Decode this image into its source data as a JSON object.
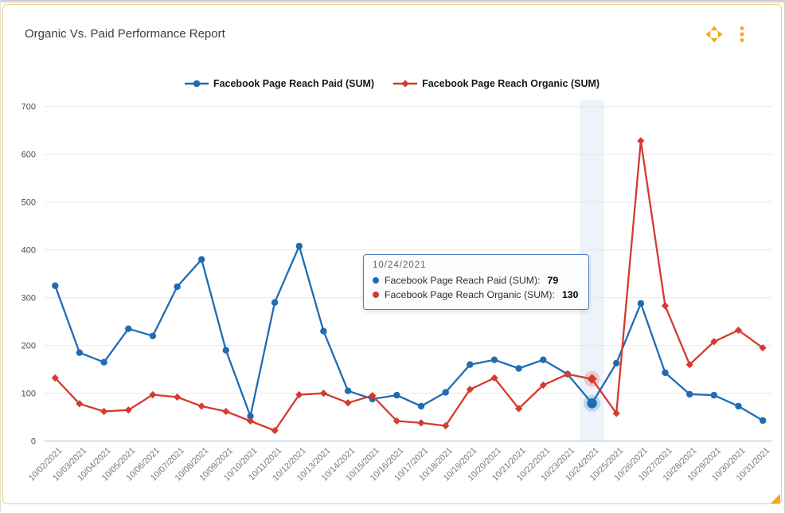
{
  "widget": {
    "title": "Organic Vs. Paid Performance Report",
    "icons": {
      "move": "move-arrows-icon",
      "menu": "kebab-vertical-dots-icon",
      "resize": "corner-resize-handle"
    }
  },
  "colors": {
    "paid": "#1F6CB4",
    "organic": "#D53A2E",
    "accent": "#F5A81F",
    "card_border": "#F3CF80",
    "grid": "#E8E8E8",
    "axis_line": "#BCD2EE",
    "highlight_band": "#EDF3FA"
  },
  "chart_data": {
    "type": "line",
    "title": "Organic Vs. Paid Performance Report",
    "xlabel": "",
    "ylabel": "",
    "ylim": [
      0,
      700
    ],
    "yticks": [
      0,
      100,
      200,
      300,
      400,
      500,
      600,
      700
    ],
    "grid": true,
    "legend_position": "top-center",
    "highlight_index": 22,
    "categories": [
      "10/02/2021",
      "10/03/2021",
      "10/04/2021",
      "10/05/2021",
      "10/06/2021",
      "10/07/2021",
      "10/08/2021",
      "10/09/2021",
      "10/10/2021",
      "10/11/2021",
      "10/12/2021",
      "10/13/2021",
      "10/14/2021",
      "10/15/2021",
      "10/16/2021",
      "10/17/2021",
      "10/18/2021",
      "10/19/2021",
      "10/20/2021",
      "10/21/2021",
      "10/22/2021",
      "10/23/2021",
      "10/24/2021",
      "10/25/2021",
      "10/26/2021",
      "10/27/2021",
      "10/28/2021",
      "10/29/2021",
      "10/30/2021",
      "10/31/2021"
    ],
    "series": [
      {
        "name": "Facebook Page Reach Paid (SUM)",
        "color": "#1F6CB4",
        "marker": "circle",
        "values": [
          325,
          185,
          165,
          235,
          220,
          323,
          380,
          190,
          52,
          290,
          408,
          230,
          105,
          88,
          96,
          73,
          102,
          160,
          170,
          152,
          170,
          140,
          79,
          163,
          288,
          143,
          98,
          96,
          73,
          43
        ]
      },
      {
        "name": "Facebook Page Reach Organic (SUM)",
        "color": "#D53A2E",
        "marker": "diamond",
        "values": [
          132,
          78,
          62,
          65,
          97,
          92,
          73,
          62,
          42,
          22,
          97,
          100,
          80,
          95,
          42,
          38,
          32,
          108,
          132,
          68,
          117,
          140,
          130,
          58,
          628,
          283,
          160,
          208,
          232,
          195
        ]
      }
    ]
  },
  "tooltip": {
    "date": "10/24/2021",
    "rows": [
      {
        "label": "Facebook Page Reach Paid (SUM):",
        "value": "79",
        "color": "#1F6CB4"
      },
      {
        "label": "Facebook Page Reach Organic (SUM):",
        "value": "130",
        "color": "#D53A2E"
      }
    ]
  }
}
